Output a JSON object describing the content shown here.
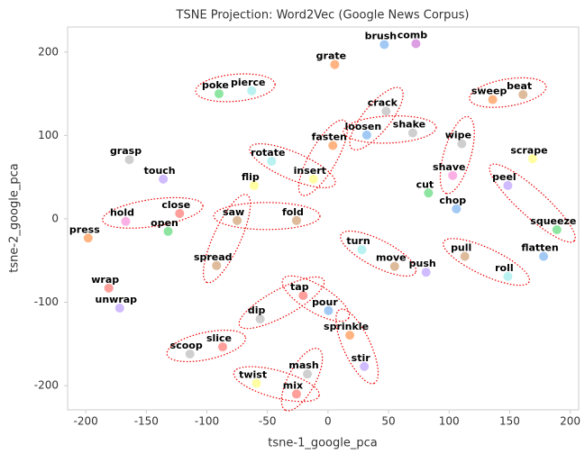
{
  "chart_data": {
    "type": "scatter",
    "title": "TSNE Projection: Word2Vec (Google News Corpus)",
    "x_label": "tsne-1_google_pca",
    "y_label": "tsne-2_google_pca",
    "xlim": [
      -215,
      207
    ],
    "ylim": [
      -229,
      230
    ],
    "xticks": [
      -200,
      -150,
      -100,
      -50,
      0,
      50,
      100,
      150,
      200
    ],
    "yticks": [
      -200,
      -100,
      0,
      100,
      200
    ],
    "labels": [
      "brush",
      "comb",
      "grate",
      "poke",
      "pierce",
      "crack",
      "sweep",
      "beat",
      "loosen",
      "shake",
      "fasten",
      "wipe",
      "grasp",
      "touch",
      "rotate",
      "insert",
      "flip",
      "scrape",
      "shave",
      "cut",
      "peel",
      "chop",
      "close",
      "hold",
      "saw",
      "fold",
      "open",
      "press",
      "squeeze",
      "turn",
      "pull",
      "flatten",
      "move",
      "push",
      "spread",
      "roll",
      "wrap",
      "tap",
      "unwrap",
      "pour",
      "dip",
      "sprinkle",
      "slice",
      "scoop",
      "stir",
      "mash",
      "twist",
      "mix"
    ],
    "x": [
      46.5,
      72.6,
      5.6,
      -90,
      -63,
      48,
      136,
      161,
      32,
      70,
      4,
      110.5,
      -164,
      -136,
      -46.6,
      -12,
      -61,
      169,
      103,
      83,
      148.5,
      106,
      -122.5,
      -167,
      -75,
      -26,
      -132,
      -198,
      189,
      28,
      113,
      178,
      55,
      81,
      -92,
      148.5,
      -181,
      -20.5,
      -172,
      0.4,
      -56,
      18,
      -87,
      -114,
      30,
      -17,
      -59,
      -26
    ],
    "y": [
      209,
      210,
      185,
      150,
      153.5,
      129,
      143,
      149,
      100.5,
      103,
      88,
      90,
      71,
      47.6,
      69,
      47.6,
      40,
      72,
      52,
      31,
      40,
      12,
      6.5,
      -3,
      -2,
      -2,
      -15,
      -23,
      -13,
      -37,
      -45,
      -45,
      -57,
      -64,
      -56,
      -69,
      -83,
      -92,
      -107,
      -110,
      -120,
      -139.5,
      -153.5,
      -162,
      -177,
      -186,
      -197,
      -210
    ],
    "colors": [
      "#a1c9f4",
      "#dc9fe4",
      "#ffb482",
      "#8de5a1",
      "#b9f2f0",
      "#cfcfcf",
      "#ffb482",
      "#debb9b",
      "#a1c9f4",
      "#cfcfcf",
      "#ffb482",
      "#cfcfcf",
      "#cfcfcf",
      "#d0bbff",
      "#b9f2f0",
      "#fffea3",
      "#fffea3",
      "#fffea3",
      "#fab0e4",
      "#8de5a1",
      "#d0bbff",
      "#a1c9f4",
      "#ff9f9b",
      "#fab0e4",
      "#debb9b",
      "#debb9b",
      "#8de5a1",
      "#ffb482",
      "#8de5a1",
      "#b9f2f0",
      "#debb9b",
      "#a1c9f4",
      "#debb9b",
      "#d0bbff",
      "#debb9b",
      "#b9f2f0",
      "#ff9f9b",
      "#ff9f9b",
      "#d0bbff",
      "#a1c9f4",
      "#cfcfcf",
      "#ffb482",
      "#ff9f9b",
      "#cfcfcf",
      "#d0bbff",
      "#cfcfcf",
      "#fffea3",
      "#ff9f9b"
    ]
  }
}
